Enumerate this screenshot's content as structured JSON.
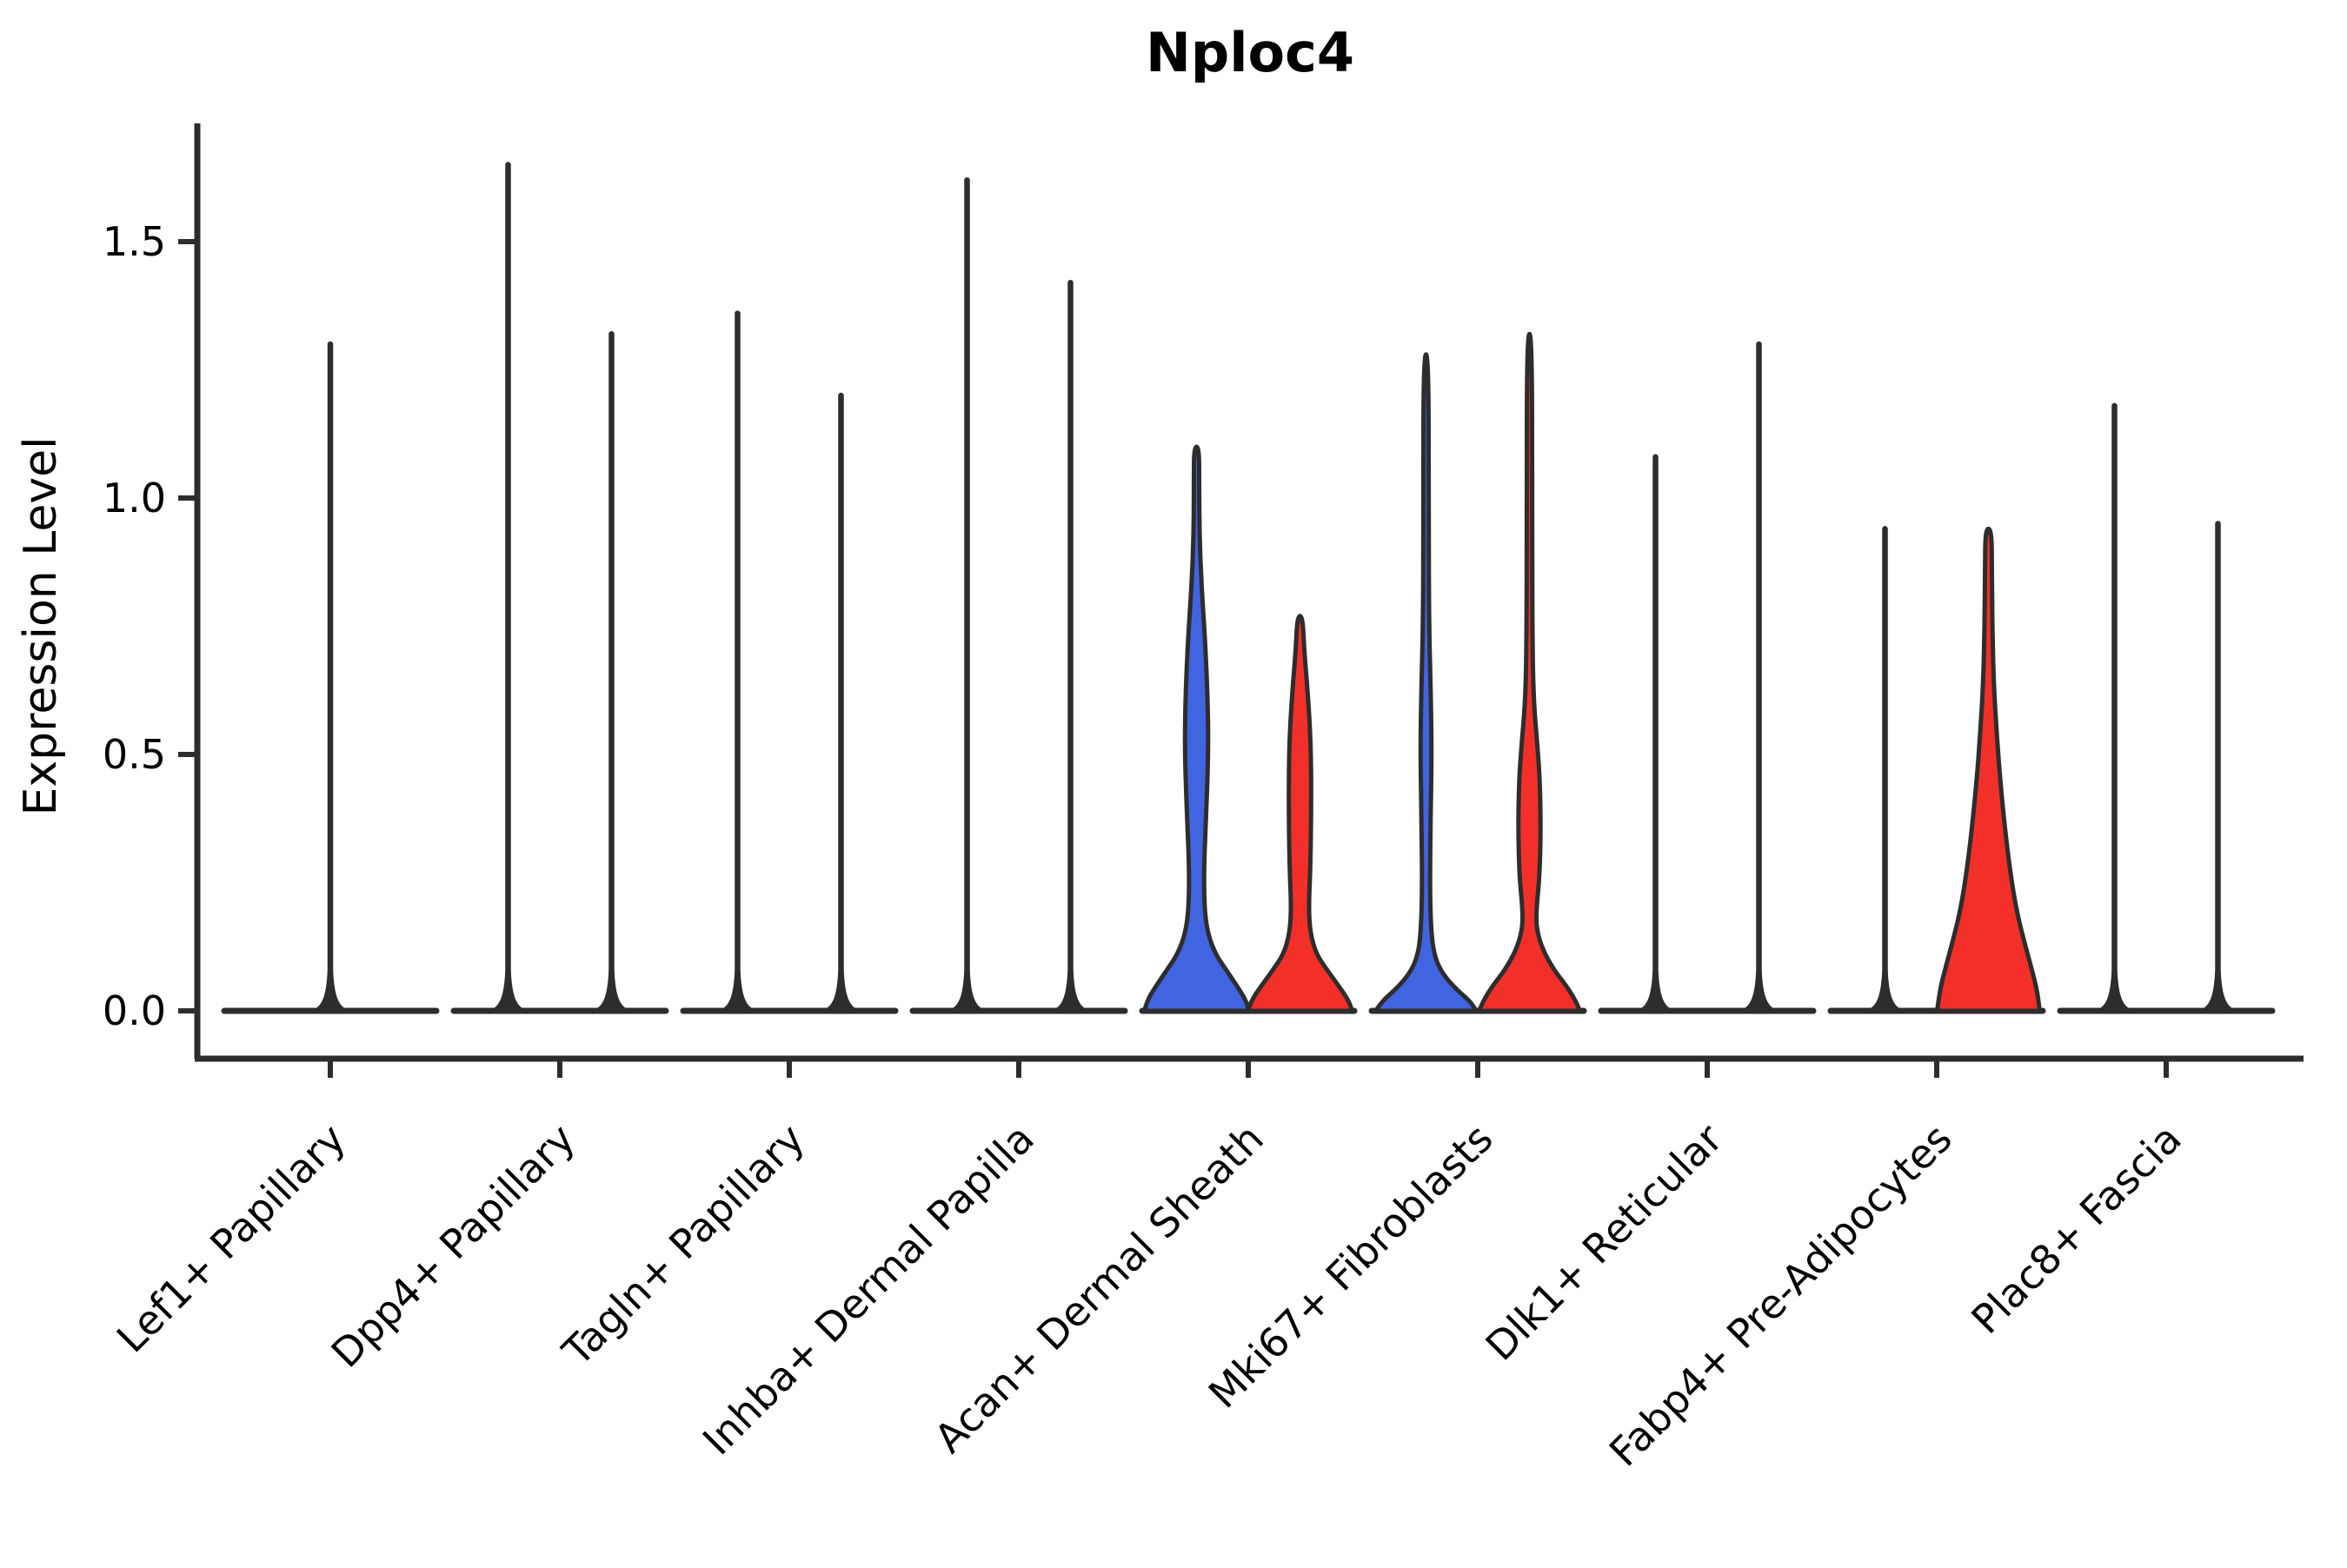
{
  "chart_data": {
    "type": "violin",
    "title": "Nploc4",
    "ylabel": "Expression Level",
    "xlabel": "",
    "yticks": [
      "0.0",
      "0.5",
      "1.0",
      "1.5"
    ],
    "ytick_values": [
      0.0,
      0.5,
      1.0,
      1.5
    ],
    "ylim": [
      -0.09,
      1.73
    ],
    "grid": false,
    "legend_position": "none",
    "split_groups": 2,
    "colors": {
      "group1_fill": "#4164E1",
      "group2_fill": "#F23029",
      "outline": "#2d2d2d",
      "background": "#ffffff"
    },
    "categories": [
      "Lef1+ Papillary",
      "Dpp4+ Papillary",
      "Tagln+ Papillary",
      "Inhba+ Dermal Papilla",
      "Acan+ Dermal Sheath",
      "Mki67+ Fibroblasts",
      "Dlk1+ Reticular",
      "Fabp4+ Pre-Adipocytes",
      "Plac8+ Fascia"
    ],
    "violins": [
      {
        "category_index": 0,
        "slot": "center",
        "color": "none",
        "max_expression": 1.3,
        "profile": null
      },
      {
        "category_index": 1,
        "slot": "left",
        "color": "none",
        "max_expression": 1.65,
        "profile": null
      },
      {
        "category_index": 1,
        "slot": "right",
        "color": "none",
        "max_expression": 1.32,
        "profile": null
      },
      {
        "category_index": 2,
        "slot": "left",
        "color": "none",
        "max_expression": 1.36,
        "profile": null
      },
      {
        "category_index": 2,
        "slot": "right",
        "color": "none",
        "max_expression": 1.2,
        "profile": null
      },
      {
        "category_index": 3,
        "slot": "left",
        "color": "none",
        "max_expression": 1.62,
        "profile": null
      },
      {
        "category_index": 3,
        "slot": "right",
        "color": "none",
        "max_expression": 1.42,
        "profile": null
      },
      {
        "category_index": 4,
        "slot": "left",
        "color": "group1",
        "max_expression": 1.1,
        "profile": [
          [
            0,
            60
          ],
          [
            0.02,
            57
          ],
          [
            0.05,
            46
          ],
          [
            0.08,
            34
          ],
          [
            0.11,
            22
          ],
          [
            0.15,
            13
          ],
          [
            0.2,
            9
          ],
          [
            0.28,
            8.5
          ],
          [
            0.38,
            11
          ],
          [
            0.5,
            13.5
          ],
          [
            0.6,
            13
          ],
          [
            0.72,
            10
          ],
          [
            0.82,
            6
          ],
          [
            0.92,
            3.5
          ],
          [
            1.02,
            3
          ],
          [
            1.1,
            3
          ]
        ]
      },
      {
        "category_index": 4,
        "slot": "right",
        "color": "group2",
        "max_expression": 0.77,
        "profile": [
          [
            0,
            60
          ],
          [
            0.02,
            56
          ],
          [
            0.05,
            44
          ],
          [
            0.08,
            31
          ],
          [
            0.11,
            19
          ],
          [
            0.15,
            12
          ],
          [
            0.2,
            10
          ],
          [
            0.28,
            12
          ],
          [
            0.4,
            13
          ],
          [
            0.52,
            12.5
          ],
          [
            0.62,
            9
          ],
          [
            0.7,
            5
          ],
          [
            0.77,
            3
          ]
        ]
      },
      {
        "category_index": 5,
        "slot": "left",
        "color": "group1",
        "max_expression": 1.28,
        "profile": [
          [
            0,
            58
          ],
          [
            0.02,
            50
          ],
          [
            0.04,
            36
          ],
          [
            0.07,
            20
          ],
          [
            0.1,
            11
          ],
          [
            0.14,
            6.5
          ],
          [
            0.22,
            4.5
          ],
          [
            0.35,
            5
          ],
          [
            0.5,
            6.5
          ],
          [
            0.62,
            5.5
          ],
          [
            0.75,
            3.5
          ],
          [
            0.95,
            3
          ],
          [
            1.28,
            3
          ]
        ]
      },
      {
        "category_index": 5,
        "slot": "right",
        "color": "group2",
        "max_expression": 1.32,
        "profile": [
          [
            0,
            58
          ],
          [
            0.02,
            53
          ],
          [
            0.05,
            42
          ],
          [
            0.08,
            28
          ],
          [
            0.12,
            15
          ],
          [
            0.16,
            8
          ],
          [
            0.2,
            8
          ],
          [
            0.26,
            11.5
          ],
          [
            0.35,
            13
          ],
          [
            0.45,
            12
          ],
          [
            0.52,
            9
          ],
          [
            0.6,
            5
          ],
          [
            0.7,
            3.5
          ],
          [
            0.95,
            3
          ],
          [
            1.32,
            3
          ]
        ]
      },
      {
        "category_index": 6,
        "slot": "left",
        "color": "none",
        "max_expression": 1.08,
        "profile": null
      },
      {
        "category_index": 6,
        "slot": "right",
        "color": "none",
        "max_expression": 1.3,
        "profile": null
      },
      {
        "category_index": 7,
        "slot": "left",
        "color": "none",
        "max_expression": 0.94,
        "profile": null
      },
      {
        "category_index": 7,
        "slot": "right",
        "color": "group2",
        "max_expression": 0.94,
        "profile": [
          [
            0,
            59
          ],
          [
            0.04,
            56
          ],
          [
            0.08,
            50
          ],
          [
            0.13,
            42
          ],
          [
            0.19,
            33
          ],
          [
            0.26,
            26
          ],
          [
            0.34,
            20
          ],
          [
            0.44,
            14
          ],
          [
            0.54,
            9.5
          ],
          [
            0.64,
            6
          ],
          [
            0.75,
            4.5
          ],
          [
            0.86,
            4
          ],
          [
            0.94,
            3.5
          ]
        ]
      },
      {
        "category_index": 8,
        "slot": "left",
        "color": "none",
        "max_expression": 1.18,
        "profile": null
      },
      {
        "category_index": 8,
        "slot": "right",
        "color": "none",
        "max_expression": 0.95,
        "profile": null
      }
    ]
  }
}
